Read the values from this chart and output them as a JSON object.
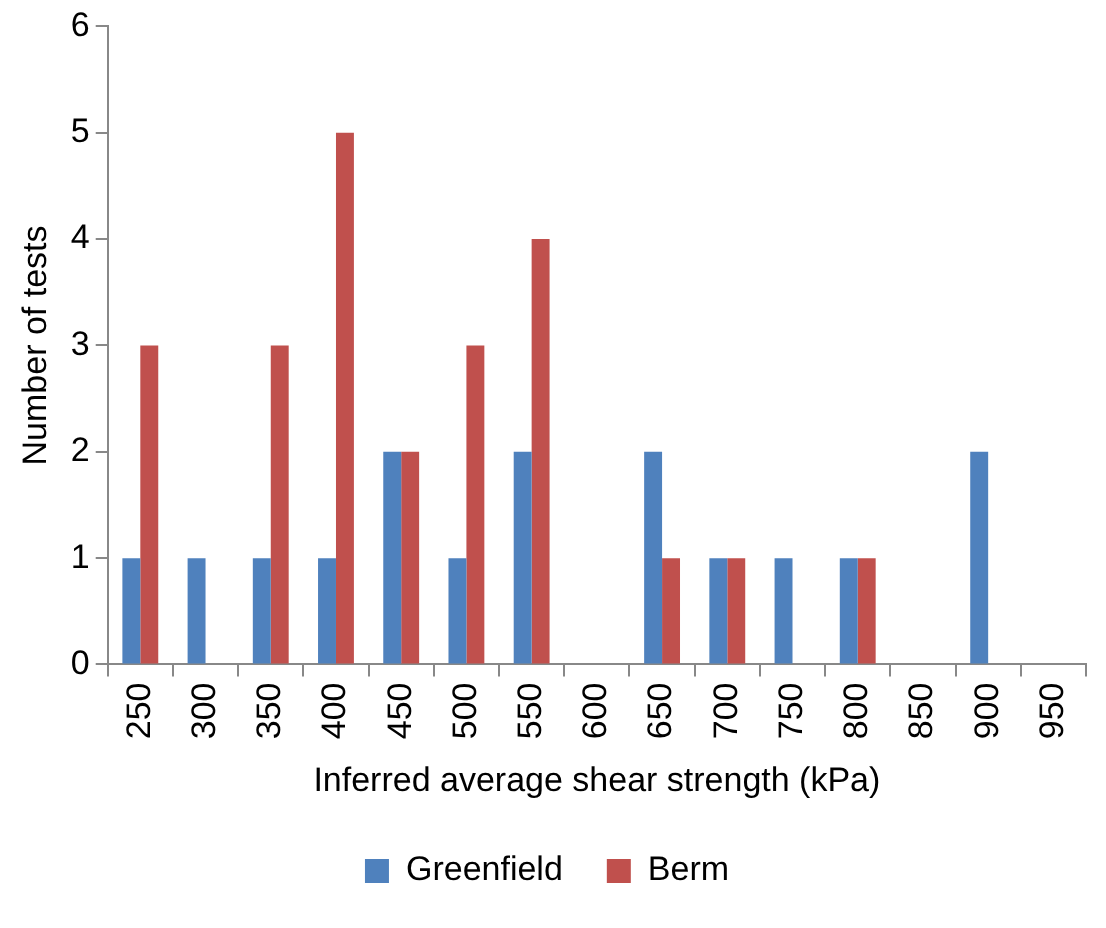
{
  "chart_data": {
    "type": "bar",
    "xlabel": "Inferred average shear strength (kPa)",
    "ylabel": "Number of tests",
    "categories": [
      "250",
      "300",
      "350",
      "400",
      "450",
      "500",
      "550",
      "600",
      "650",
      "700",
      "750",
      "800",
      "850",
      "900",
      "950"
    ],
    "series": [
      {
        "name": "Greenfield",
        "color": "#4f81bd",
        "values": [
          1,
          1,
          1,
          1,
          2,
          1,
          2,
          0,
          2,
          1,
          1,
          1,
          0,
          2,
          0
        ]
      },
      {
        "name": "Berm",
        "color": "#c0504d",
        "values": [
          3,
          0,
          3,
          5,
          2,
          3,
          4,
          0,
          1,
          1,
          0,
          1,
          0,
          0,
          0
        ]
      }
    ],
    "ylim": [
      0,
      6
    ],
    "yticks": [
      0,
      1,
      2,
      3,
      4,
      5,
      6
    ],
    "grid": false,
    "legend": "bottom"
  }
}
